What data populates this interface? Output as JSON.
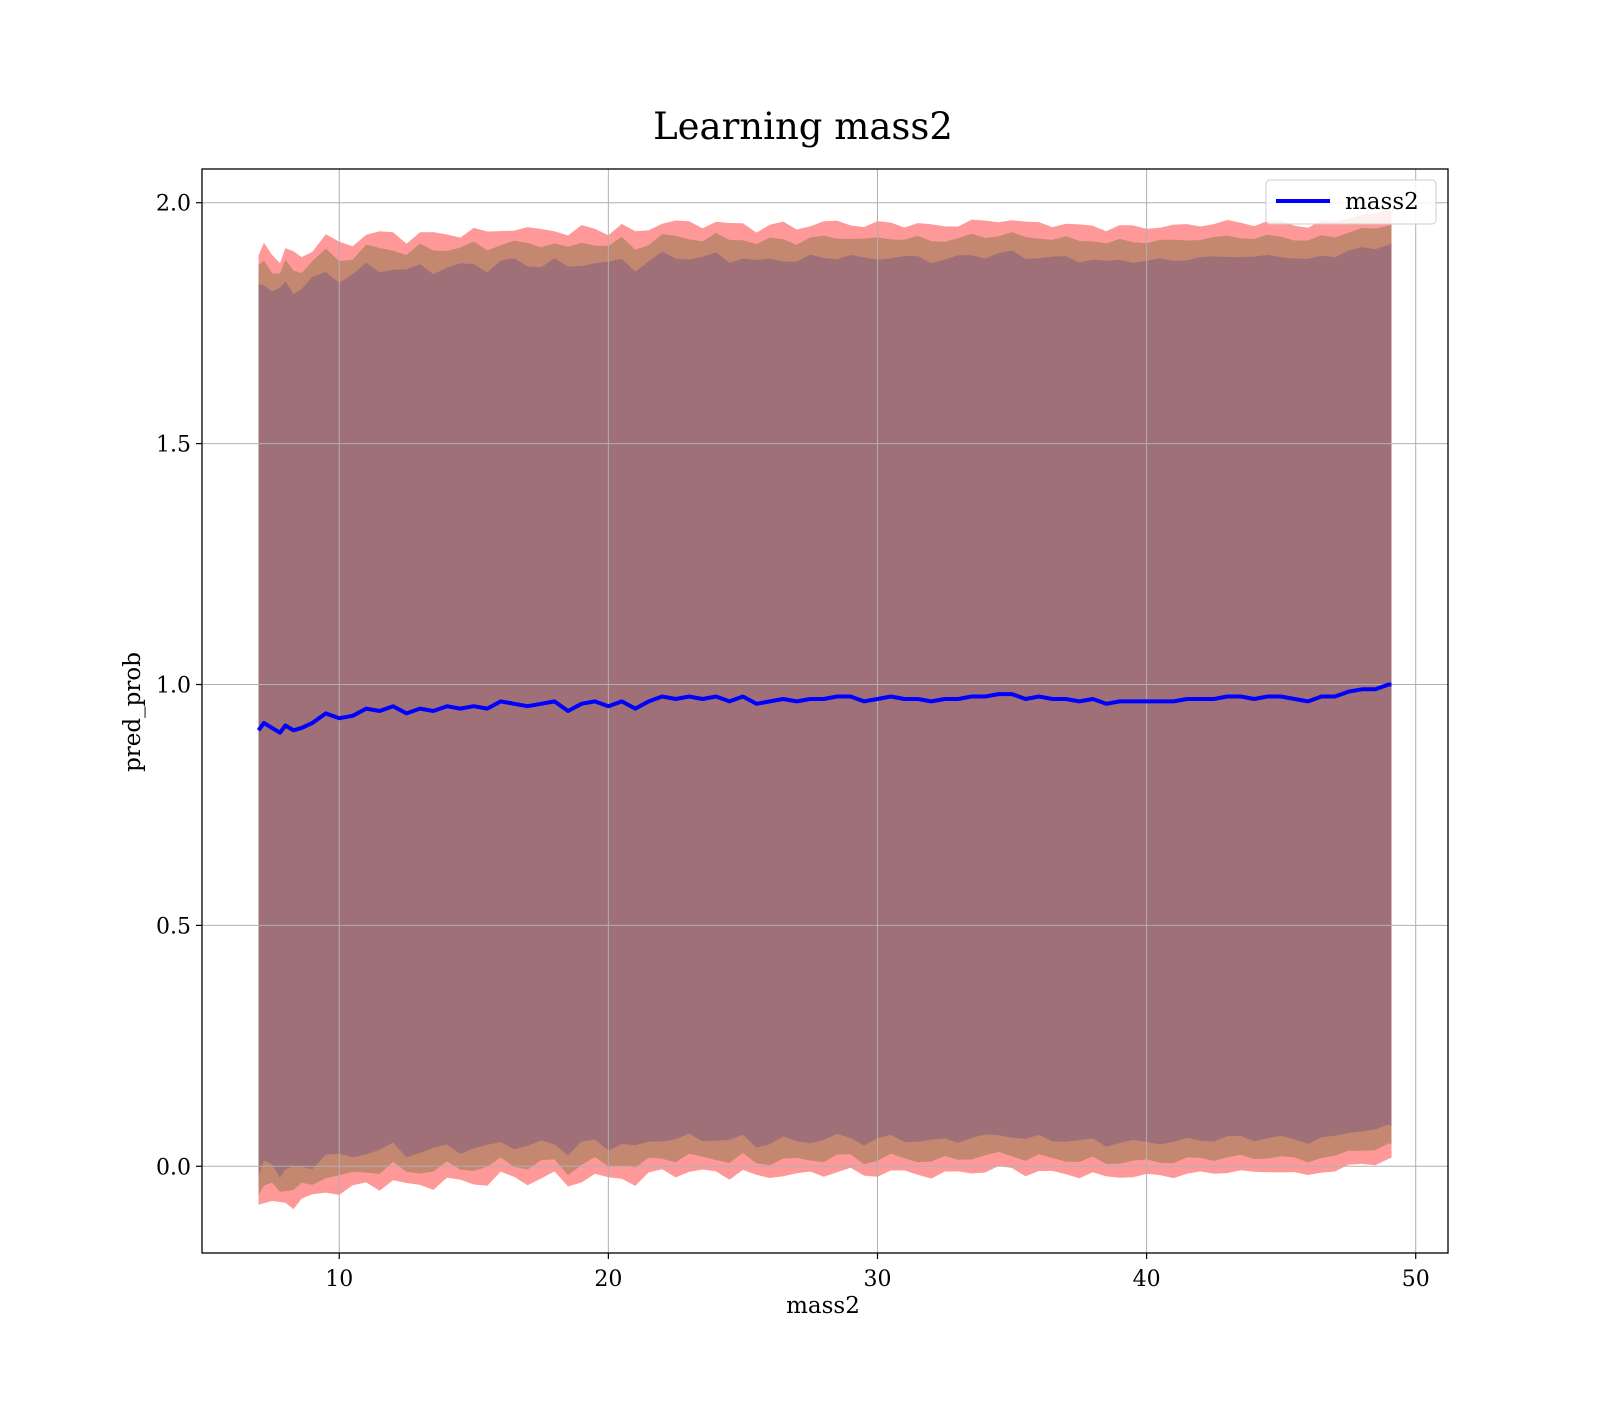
{
  "chart_data": {
    "type": "line",
    "title": "Learning mass2",
    "xlabel": "mass2",
    "ylabel": "pred_prob",
    "xlim": [
      4.9,
      51.2
    ],
    "ylim": [
      -0.18,
      2.07
    ],
    "xticks": [
      10,
      20,
      30,
      40,
      50
    ],
    "yticks": [
      0.0,
      0.5,
      1.0,
      1.5,
      2.0
    ],
    "xtick_labels": [
      "10",
      "20",
      "30",
      "40",
      50
    ],
    "ytick_labels": [
      "0.0",
      "0.5",
      "1.0",
      "1.5",
      "2.0"
    ],
    "grid": true,
    "legend_position": "top-right",
    "colors": {
      "line": "#0000ff",
      "band_outer": "#ff9999",
      "band_middle": "#c4876f",
      "band_inner": "#a07079",
      "grid": "#b0b0b0"
    },
    "series": [
      {
        "name": "mass2",
        "x": [
          7,
          7.2,
          7.5,
          7.8,
          8,
          8.3,
          8.6,
          9,
          9.5,
          10,
          10.5,
          11,
          11.5,
          12,
          12.5,
          13,
          13.5,
          14,
          14.5,
          15,
          15.5,
          16,
          16.5,
          17,
          17.5,
          18,
          18.5,
          19,
          19.5,
          20,
          20.5,
          21,
          21.5,
          22,
          22.5,
          23,
          23.5,
          24,
          24.5,
          25,
          25.5,
          26,
          26.5,
          27,
          27.5,
          28,
          28.5,
          29,
          29.5,
          30,
          30.5,
          31,
          31.5,
          32,
          32.5,
          33,
          33.5,
          34,
          34.5,
          35,
          35.5,
          36,
          36.5,
          37,
          37.5,
          38,
          38.5,
          39,
          39.5,
          40,
          40.5,
          41,
          41.5,
          42,
          42.5,
          43,
          43.5,
          44,
          44.5,
          45,
          45.5,
          46,
          46.5,
          47,
          47.5,
          48,
          48.5,
          49,
          49.1
        ],
        "values": [
          0.905,
          0.92,
          0.91,
          0.9,
          0.915,
          0.905,
          0.91,
          0.92,
          0.94,
          0.93,
          0.935,
          0.95,
          0.945,
          0.955,
          0.94,
          0.95,
          0.945,
          0.955,
          0.95,
          0.955,
          0.95,
          0.965,
          0.96,
          0.955,
          0.96,
          0.965,
          0.945,
          0.96,
          0.965,
          0.955,
          0.965,
          0.95,
          0.965,
          0.975,
          0.97,
          0.975,
          0.97,
          0.975,
          0.965,
          0.975,
          0.96,
          0.965,
          0.97,
          0.965,
          0.97,
          0.97,
          0.975,
          0.975,
          0.965,
          0.97,
          0.975,
          0.97,
          0.97,
          0.965,
          0.97,
          0.97,
          0.975,
          0.975,
          0.98,
          0.98,
          0.97,
          0.975,
          0.97,
          0.97,
          0.965,
          0.97,
          0.96,
          0.965,
          0.965,
          0.965,
          0.965,
          0.965,
          0.97,
          0.97,
          0.97,
          0.975,
          0.975,
          0.97,
          0.975,
          0.975,
          0.97,
          0.965,
          0.975,
          0.975,
          0.985,
          0.99,
          0.99,
          1.0,
          1.0
        ]
      }
    ]
  }
}
